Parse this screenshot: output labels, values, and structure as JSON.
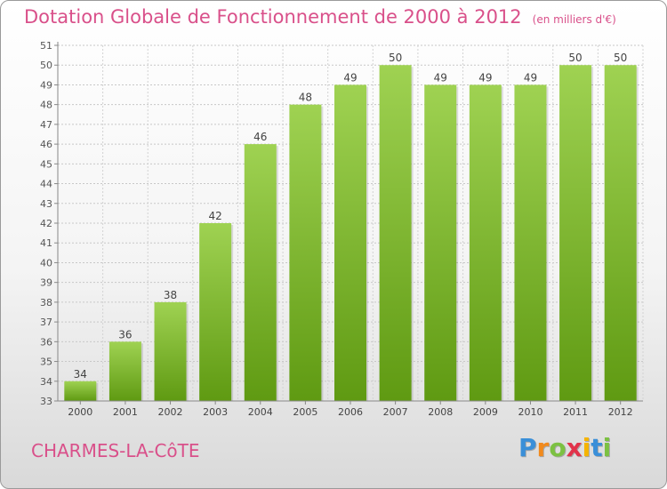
{
  "header": {
    "title": "Dotation Globale de Fonctionnement de 2000 à 2012",
    "unit": "(en milliers d'€)"
  },
  "footer": {
    "commune": "CHARMES-LA-CôTE",
    "logo_letters": [
      "P",
      "r",
      "o",
      "x",
      "i",
      "t",
      "i"
    ],
    "logo_colors": [
      "#3a8fd8",
      "#f28a1c",
      "#7cc142",
      "#e2334b",
      "#f5b400",
      "#3a8fd8",
      "#7cc142"
    ]
  },
  "chart_data": {
    "type": "bar",
    "categories": [
      "2000",
      "2001",
      "2002",
      "2003",
      "2004",
      "2005",
      "2006",
      "2007",
      "2008",
      "2009",
      "2010",
      "2011",
      "2012"
    ],
    "values": [
      34,
      36,
      38,
      42,
      46,
      48,
      49,
      50,
      49,
      49,
      49,
      50,
      50
    ],
    "ylim": [
      33,
      51
    ],
    "yticks": [
      33,
      34,
      35,
      36,
      37,
      38,
      39,
      40,
      41,
      42,
      43,
      44,
      45,
      46,
      47,
      48,
      49,
      50,
      51
    ],
    "grid": true,
    "bar_color_top": "#9fd252",
    "bar_color_bottom": "#5f9a12"
  }
}
